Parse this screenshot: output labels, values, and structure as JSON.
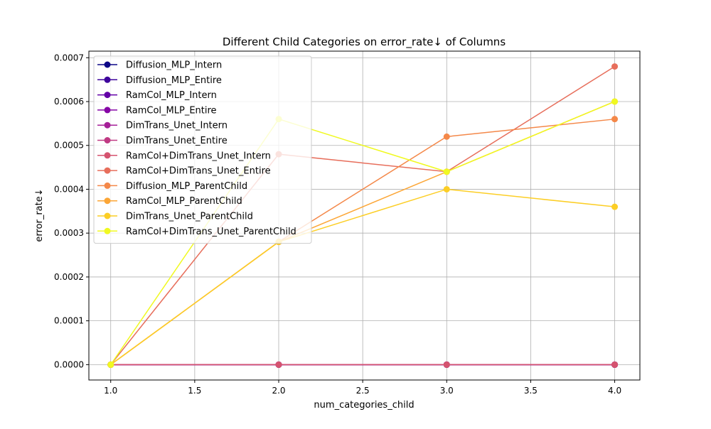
{
  "chart_data": {
    "type": "line",
    "title": "Different Child Categories on error_rate↓ of Columns",
    "xlabel": "num_categories_child",
    "ylabel": "error_rate↓",
    "x": [
      1.0,
      2.0,
      3.0,
      4.0
    ],
    "xlim": [
      0.87,
      4.15
    ],
    "ylim": [
      -3.5e-05,
      0.000715
    ],
    "xticks": [
      "1.0",
      "1.5",
      "2.0",
      "2.5",
      "3.0",
      "3.5",
      "4.0"
    ],
    "yticks": [
      "0.0000",
      "0.0001",
      "0.0002",
      "0.0003",
      "0.0004",
      "0.0005",
      "0.0006",
      "0.0007"
    ],
    "grid": true,
    "legend_position": "top-left",
    "series": [
      {
        "name": "Diffusion_MLP_Intern",
        "color": "#0d0887",
        "values": [
          0,
          0,
          0,
          0
        ]
      },
      {
        "name": "Diffusion_MLP_Entire",
        "color": "#3e049c",
        "values": [
          0,
          0,
          0,
          0
        ]
      },
      {
        "name": "RamCol_MLP_Intern",
        "color": "#6300a7",
        "values": [
          0,
          0,
          0,
          0
        ]
      },
      {
        "name": "RamCol_MLP_Entire",
        "color": "#8606a6",
        "values": [
          0,
          0,
          0,
          0
        ]
      },
      {
        "name": "DimTrans_Unet_Intern",
        "color": "#a62098",
        "values": [
          0,
          0,
          0,
          0
        ]
      },
      {
        "name": "DimTrans_Unet_Entire",
        "color": "#c03a83",
        "values": [
          0,
          0,
          0,
          0
        ]
      },
      {
        "name": "RamCol+DimTrans_Unet_Intern",
        "color": "#d5536f",
        "values": [
          0,
          0,
          0,
          0
        ]
      },
      {
        "name": "RamCol+DimTrans_Unet_Entire",
        "color": "#e76e5b",
        "values": [
          0,
          0.00048,
          0.00044,
          0.00068
        ]
      },
      {
        "name": "Diffusion_MLP_ParentChild",
        "color": "#f48849",
        "values": [
          0,
          0.00028,
          0.00052,
          0.00056
        ]
      },
      {
        "name": "RamCol_MLP_ParentChild",
        "color": "#fca636",
        "values": [
          0,
          0.00028,
          0.00044,
          0.0006
        ]
      },
      {
        "name": "DimTrans_Unet_ParentChild",
        "color": "#fcce25",
        "values": [
          0,
          0.00028,
          0.0004,
          0.00036
        ]
      },
      {
        "name": "RamCol+DimTrans_Unet_ParentChild",
        "color": "#f0f921",
        "values": [
          0,
          0.00056,
          0.00044,
          0.0006
        ]
      }
    ]
  }
}
